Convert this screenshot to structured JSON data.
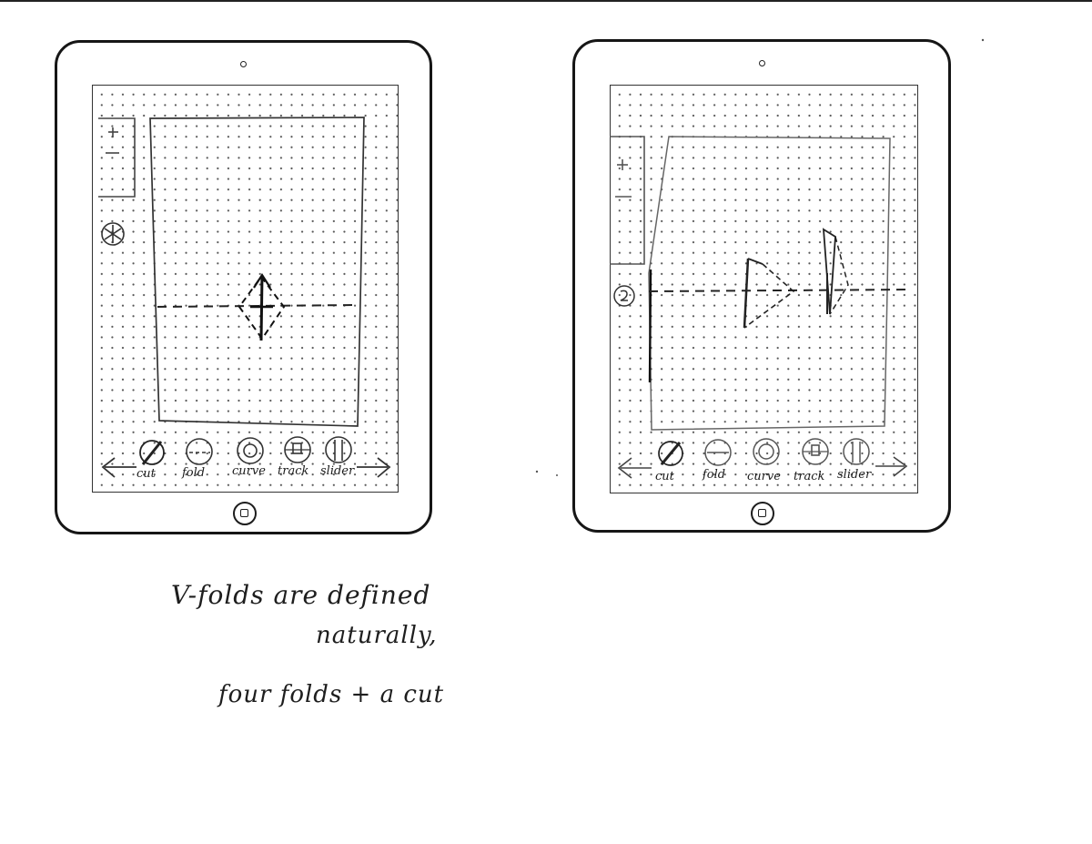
{
  "devices": [
    {
      "name": "left",
      "toolbar": {
        "labels": [
          "cut",
          "fold",
          "curve",
          "track",
          "slider"
        ]
      }
    },
    {
      "name": "right",
      "toolbar": {
        "labels": [
          "cut",
          "fold",
          "curve",
          "track",
          "slider"
        ]
      }
    }
  ],
  "notes": {
    "line1": "V-folds are defined",
    "line2": "naturally,",
    "line3": "four folds + a cut"
  }
}
